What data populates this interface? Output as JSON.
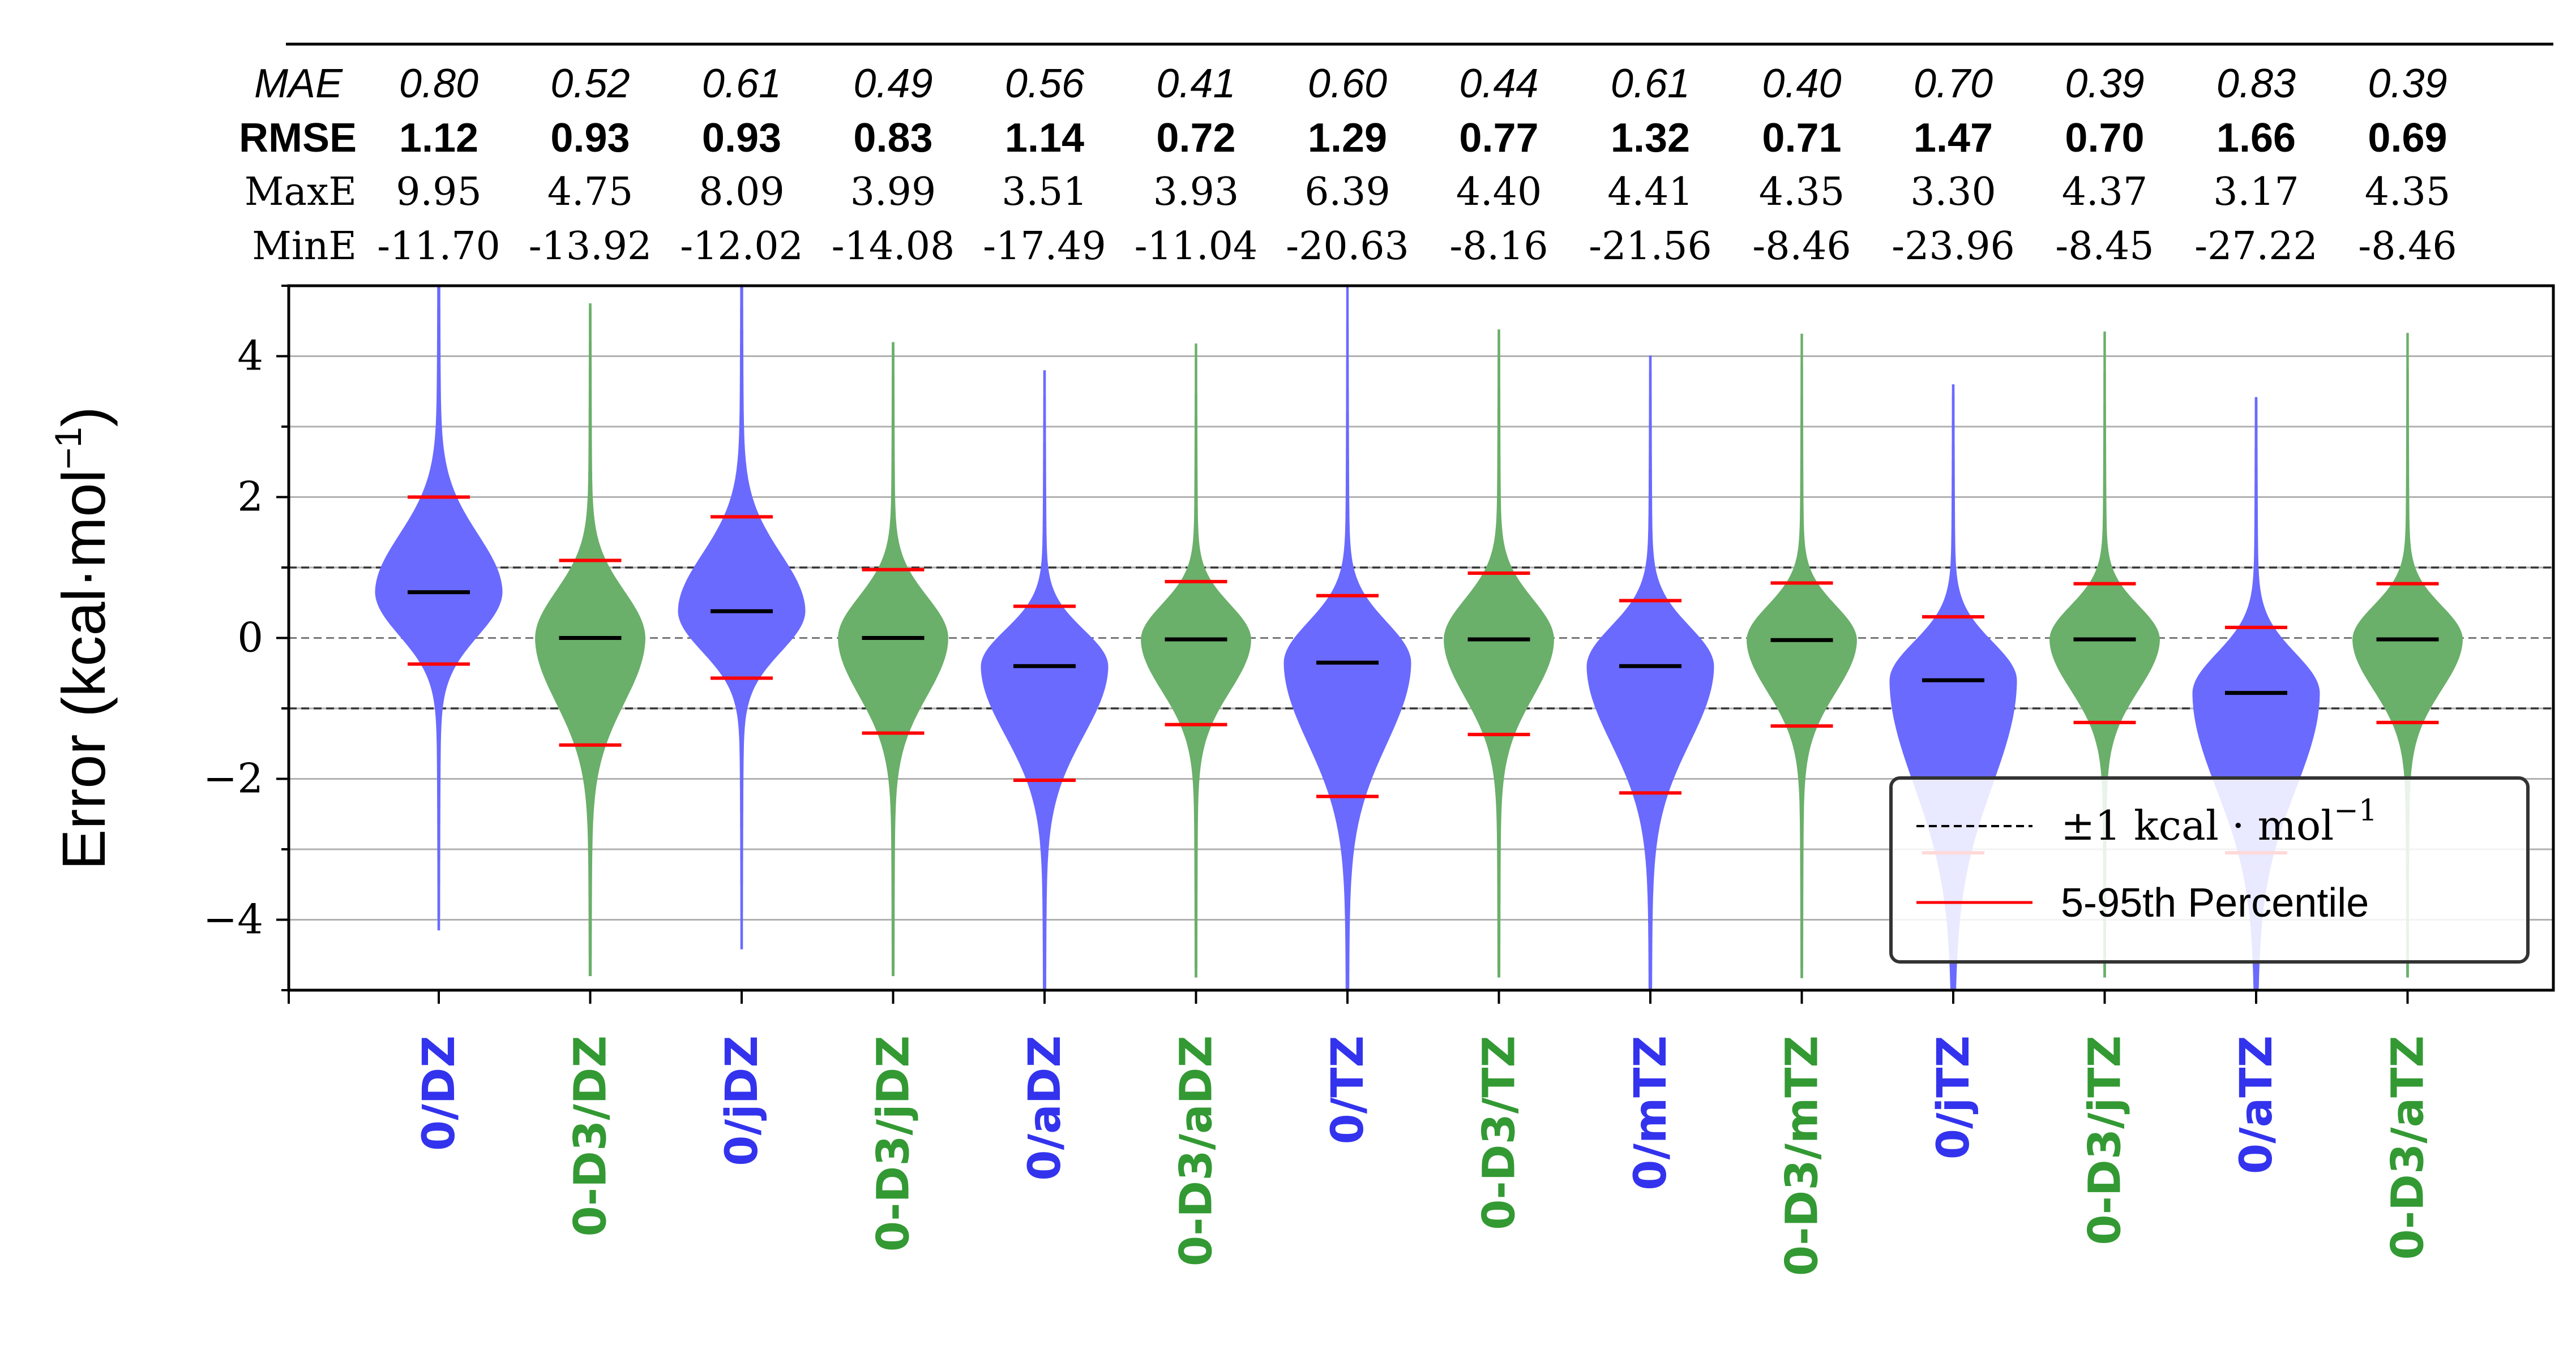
{
  "chart_data": {
    "type": "violin",
    "ylabel_main": "Error (kcal·mol",
    "ylabel_exp": "−1",
    "ylabel_close": ")",
    "ylim": [
      -5,
      5
    ],
    "yticks": [
      -4,
      -2,
      0,
      2,
      4
    ],
    "ytick_labels": [
      "−4",
      "−2",
      "0",
      "2",
      "4"
    ],
    "grid": true,
    "reference_lines": [
      1,
      -1
    ],
    "stat_labels": {
      "mae": "MAE",
      "rmse": "RMSE",
      "maxe": "MaxE",
      "mine": "MinE"
    },
    "categories": [
      "0/DZ",
      "0-D3/DZ",
      "0/jDZ",
      "0-D3/jDZ",
      "0/aDZ",
      "0-D3/aDZ",
      "0/TZ",
      "0-D3/TZ",
      "0/mTZ",
      "0-D3/mTZ",
      "0/jTZ",
      "0-D3/jTZ",
      "0/aTZ",
      "0-D3/aTZ"
    ],
    "stats": {
      "mae": [
        "0.80",
        "0.52",
        "0.61",
        "0.49",
        "0.56",
        "0.41",
        "0.60",
        "0.44",
        "0.61",
        "0.40",
        "0.70",
        "0.39",
        "0.83",
        "0.39"
      ],
      "rmse": [
        "1.12",
        "0.93",
        "0.93",
        "0.83",
        "1.14",
        "0.72",
        "1.29",
        "0.77",
        "1.32",
        "0.71",
        "1.47",
        "0.70",
        "1.66",
        "0.69"
      ],
      "maxe": [
        "9.95",
        "4.75",
        "8.09",
        "3.99",
        "3.51",
        "3.93",
        "6.39",
        "4.40",
        "4.41",
        "4.35",
        "3.30",
        "4.37",
        "3.17",
        "4.35"
      ],
      "mine": [
        "-11.70",
        "-13.92",
        "-12.02",
        "-14.08",
        "-17.49",
        "-11.04",
        "-20.63",
        "-8.16",
        "-21.56",
        "-8.46",
        "-23.96",
        "-8.45",
        "-27.22",
        "-8.46"
      ]
    },
    "mean": [
      0.65,
      0.0,
      0.38,
      0.0,
      -0.4,
      -0.02,
      -0.35,
      -0.02,
      -0.4,
      -0.03,
      -0.6,
      -0.02,
      -0.78,
      -0.02
    ],
    "p5": [
      -0.37,
      -1.52,
      -0.57,
      -1.35,
      -2.02,
      -1.23,
      -2.25,
      -1.37,
      -2.2,
      -1.25,
      -3.05,
      -1.2,
      -3.05,
      -1.2
    ],
    "p95": [
      2.0,
      1.1,
      1.72,
      0.97,
      0.45,
      0.8,
      0.6,
      0.92,
      0.53,
      0.78,
      0.3,
      0.77,
      0.15,
      0.77
    ],
    "colors": {
      "blue": "#6a6aff",
      "green": "#6aaf6a",
      "label_blue": "#3333ee",
      "label_green": "#339933",
      "percentile": "#ff0000",
      "mean": "#000000"
    },
    "legend": {
      "placement": "lower-right",
      "entries": [
        {
          "label_pre": "±1 kcal · mol",
          "label_exp": "−1",
          "style": "dashed"
        },
        {
          "label": "5-95th Percentile",
          "style": "red-line"
        }
      ]
    }
  }
}
